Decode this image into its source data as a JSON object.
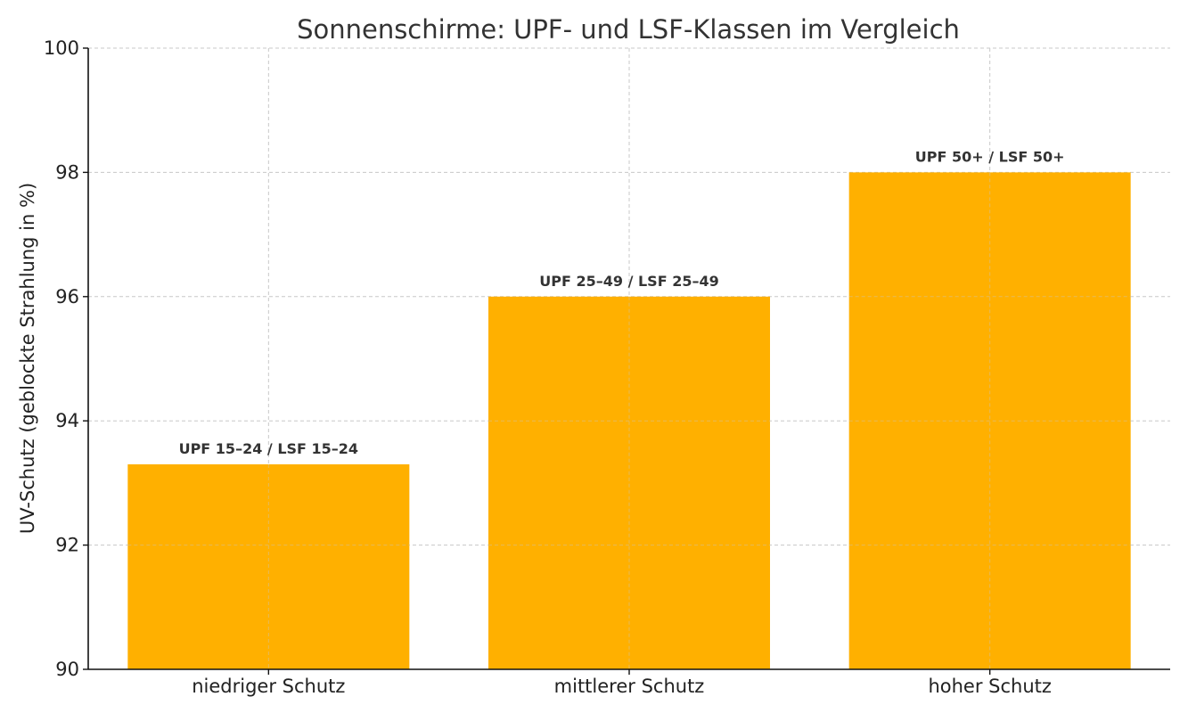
{
  "chart_data": {
    "type": "bar",
    "title": "Sonnenschirme: UPF- und LSF-Klassen im Vergleich",
    "xlabel": "",
    "ylabel": "UV-Schutz (geblockte Strahlung in %)",
    "categories": [
      "niedriger Schutz",
      "mittlerer Schutz",
      "hoher Schutz"
    ],
    "values": [
      93.3,
      96.0,
      98.0
    ],
    "data_labels": [
      "UPF 15–24 / LSF 15–24",
      "UPF 25–49 / LSF 25–49",
      "UPF 50+ / LSF 50+"
    ],
    "ylim": [
      90,
      100
    ],
    "yticks": [
      90,
      92,
      94,
      96,
      98,
      100
    ],
    "grid": true,
    "bar_color": "#FFB000"
  }
}
